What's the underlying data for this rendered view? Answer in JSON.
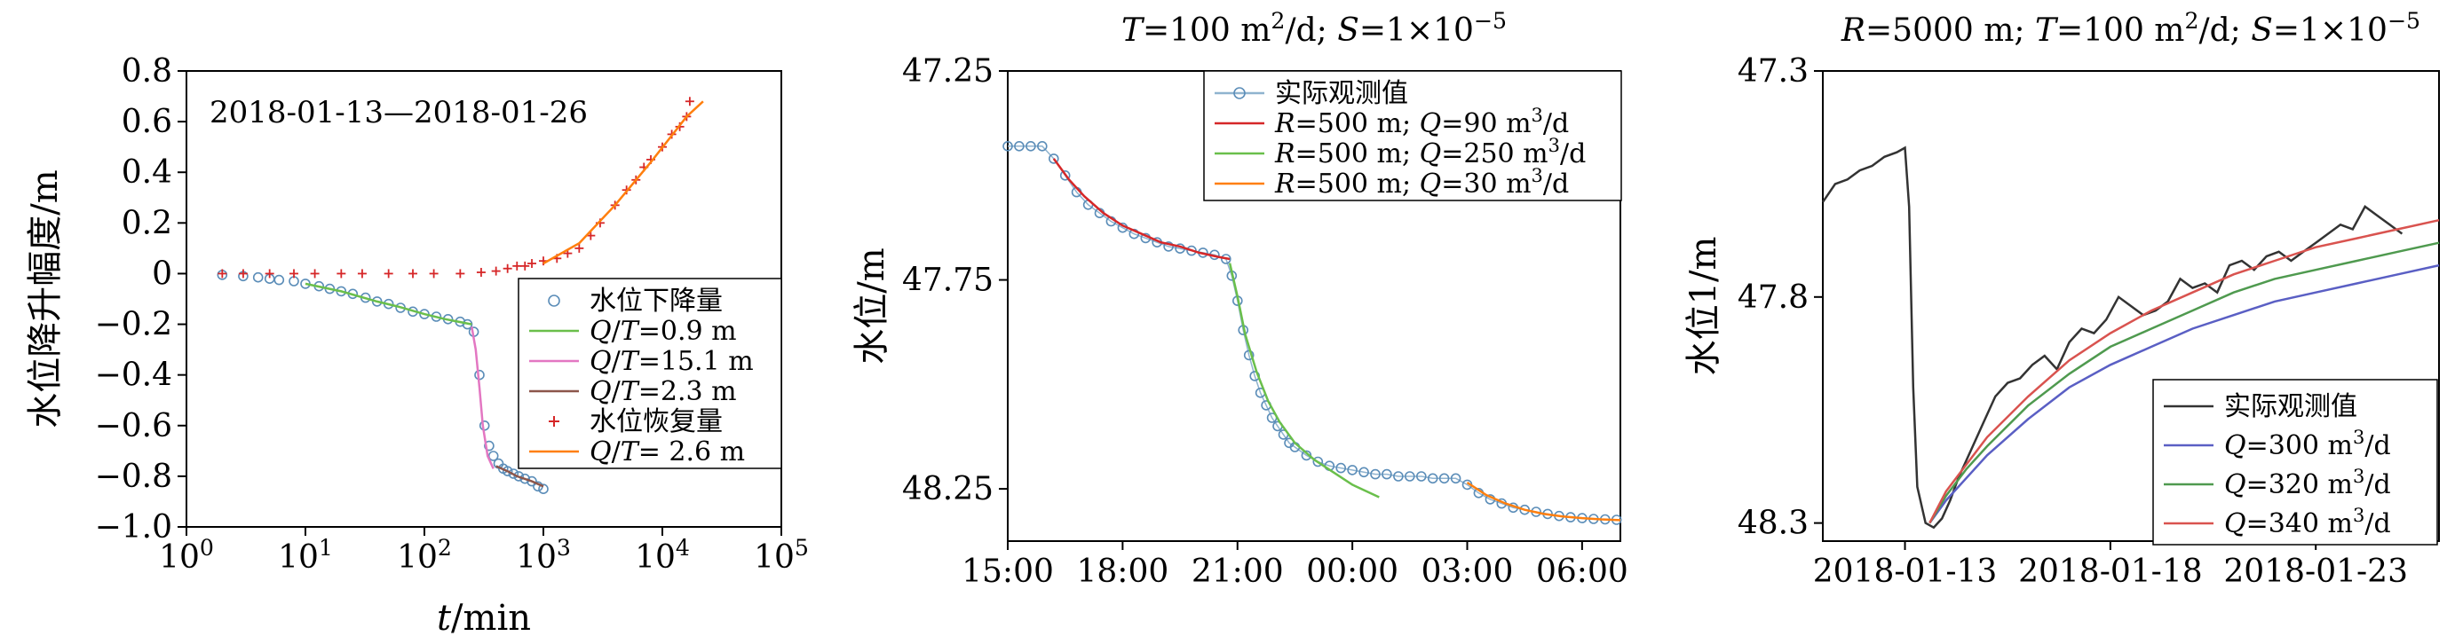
{
  "chart_data": [
    {
      "id": "panel1",
      "type": "scatter",
      "annotation": "2018-01-13—2018-01-26",
      "xlabel": "t/min",
      "ylabel": "水位降升幅度/m",
      "x_scale": "log",
      "xlim": [
        1,
        100000
      ],
      "ylim": [
        -1.0,
        0.8
      ],
      "x_ticks": [
        {
          "v": 1,
          "base": "10",
          "exp": "0"
        },
        {
          "v": 10,
          "base": "10",
          "exp": "1"
        },
        {
          "v": 100,
          "base": "10",
          "exp": "2"
        },
        {
          "v": 1000,
          "base": "10",
          "exp": "3"
        },
        {
          "v": 10000,
          "base": "10",
          "exp": "4"
        },
        {
          "v": 100000,
          "base": "10",
          "exp": "5"
        }
      ],
      "y_ticks": [
        {
          "v": 0.8,
          "label": "0.8"
        },
        {
          "v": 0.6,
          "label": "0.6"
        },
        {
          "v": 0.4,
          "label": "0.4"
        },
        {
          "v": 0.2,
          "label": "0.2"
        },
        {
          "v": 0,
          "label": "0"
        },
        {
          "v": -0.2,
          "label": "−0.2"
        },
        {
          "v": -0.4,
          "label": "−0.4"
        },
        {
          "v": -0.6,
          "label": "−0.6"
        },
        {
          "v": -0.8,
          "label": "−0.8"
        },
        {
          "v": -1.0,
          "label": "−1.0"
        }
      ],
      "legend_position": "right",
      "legend": [
        {
          "label": "水位下降量",
          "marker": "circle",
          "color": "#5b8db8"
        },
        {
          "label": "Q/T=0.9 m",
          "marker": "line",
          "color": "#6abf4b"
        },
        {
          "label": "Q/T=15.1 m",
          "marker": "line",
          "color": "#e377c2"
        },
        {
          "label": "Q/T=2.3 m",
          "marker": "line",
          "color": "#8c564b"
        },
        {
          "label": "水位恢复量",
          "marker": "plus",
          "color": "#d62728"
        },
        {
          "label": "Q/T= 2.6 m",
          "marker": "line",
          "color": "#ff7f0e"
        }
      ],
      "series": [
        {
          "name": "水位下降量",
          "kind": "circle",
          "color": "#5b8db8",
          "x": [
            2,
            3,
            4,
            5,
            6,
            8,
            10,
            13,
            16,
            20,
            25,
            32,
            40,
            50,
            63,
            80,
            100,
            126,
            158,
            200,
            230,
            260,
            290,
            320,
            350,
            380,
            420,
            460,
            500,
            560,
            620,
            700,
            800,
            900,
            1000
          ],
          "y": [
            -0.005,
            -0.01,
            -0.015,
            -0.02,
            -0.025,
            -0.03,
            -0.04,
            -0.05,
            -0.06,
            -0.07,
            -0.08,
            -0.095,
            -0.11,
            -0.12,
            -0.135,
            -0.15,
            -0.16,
            -0.17,
            -0.18,
            -0.19,
            -0.2,
            -0.23,
            -0.4,
            -0.6,
            -0.68,
            -0.72,
            -0.75,
            -0.77,
            -0.78,
            -0.79,
            -0.8,
            -0.81,
            -0.82,
            -0.84,
            -0.85
          ]
        },
        {
          "name": "Q/T=0.9 m",
          "kind": "line",
          "color": "#6abf4b",
          "x": [
            10,
            20,
            40,
            60,
            100,
            150,
            250
          ],
          "y": [
            -0.04,
            -0.07,
            -0.11,
            -0.13,
            -0.16,
            -0.18,
            -0.2
          ]
        },
        {
          "name": "Q/T=15.1 m",
          "kind": "line",
          "color": "#e377c2",
          "x": [
            250,
            270,
            290,
            310,
            340,
            380
          ],
          "y": [
            -0.21,
            -0.3,
            -0.45,
            -0.6,
            -0.72,
            -0.77
          ]
        },
        {
          "name": "Q/T=2.3 m",
          "kind": "line",
          "color": "#8c564b",
          "x": [
            400,
            500,
            600,
            800,
            1000
          ],
          "y": [
            -0.76,
            -0.78,
            -0.8,
            -0.82,
            -0.84
          ]
        },
        {
          "name": "水位恢复量",
          "kind": "plus",
          "color": "#d62728",
          "x": [
            2,
            3,
            5,
            8,
            12,
            20,
            30,
            50,
            80,
            120,
            200,
            300,
            400,
            500,
            600,
            700,
            800,
            1000,
            1300,
            1600,
            2000,
            2500,
            3000,
            4000,
            5000,
            6000,
            7000,
            8000,
            10000,
            12000,
            14000,
            16000,
            17000
          ],
          "y": [
            0,
            0,
            0,
            0,
            0,
            0,
            0,
            0,
            0,
            0,
            0,
            0.005,
            0.01,
            0.02,
            0.03,
            0.03,
            0.04,
            0.05,
            0.06,
            0.08,
            0.1,
            0.15,
            0.2,
            0.27,
            0.33,
            0.37,
            0.42,
            0.45,
            0.5,
            0.55,
            0.58,
            0.62,
            0.68
          ]
        },
        {
          "name": "Q/T= 2.6 m",
          "kind": "line",
          "color": "#ff7f0e",
          "x": [
            1000,
            2000,
            4000,
            8000,
            16000,
            22000
          ],
          "y": [
            0.04,
            0.12,
            0.27,
            0.44,
            0.62,
            0.68
          ]
        }
      ]
    },
    {
      "id": "panel2",
      "type": "line",
      "title": "T=100 m²/d; S=1×10⁻⁵",
      "ylabel": "水位/m",
      "xlim": [
        0,
        16
      ],
      "ylim": [
        47.25,
        48.375
      ],
      "y_inverted": true,
      "x_ticks": [
        {
          "v": 0,
          "label": "15:00"
        },
        {
          "v": 3,
          "label": "18:00"
        },
        {
          "v": 6,
          "label": "21:00"
        },
        {
          "v": 9,
          "label": "00:00"
        },
        {
          "v": 12,
          "label": "03:00"
        },
        {
          "v": 15,
          "label": "06:00"
        }
      ],
      "y_ticks": [
        {
          "v": 47.25,
          "label": "47.25"
        },
        {
          "v": 47.75,
          "label": "47.75"
        },
        {
          "v": 48.25,
          "label": "48.25"
        }
      ],
      "legend_position": "top-center",
      "legend": [
        {
          "label": "实际观测值",
          "marker": "circle-line",
          "color": "#8fb3cf"
        },
        {
          "label": "R=500 m; Q=90 m³/d",
          "marker": "line",
          "color": "#d62728"
        },
        {
          "label": "R=500 m; Q=250 m³/d",
          "marker": "line",
          "color": "#6abf4b"
        },
        {
          "label": "R=500 m; Q=30 m³/d",
          "marker": "line",
          "color": "#ff7f0e"
        }
      ],
      "series": [
        {
          "name": "实际观测值",
          "kind": "circle",
          "color": "#5b8db8",
          "x": [
            0,
            0.3,
            0.6,
            0.9,
            1.2,
            1.5,
            1.8,
            2.1,
            2.4,
            2.7,
            3.0,
            3.3,
            3.6,
            3.9,
            4.2,
            4.5,
            4.8,
            5.1,
            5.4,
            5.7,
            5.85,
            6.0,
            6.15,
            6.3,
            6.45,
            6.6,
            6.75,
            6.9,
            7.05,
            7.2,
            7.35,
            7.5,
            7.8,
            8.1,
            8.4,
            8.7,
            9.0,
            9.3,
            9.6,
            9.9,
            10.2,
            10.5,
            10.8,
            11.1,
            11.4,
            11.7,
            12.0,
            12.3,
            12.6,
            12.9,
            13.2,
            13.5,
            13.8,
            14.1,
            14.4,
            14.7,
            15.0,
            15.3,
            15.6,
            15.9
          ],
          "y": [
            47.43,
            47.43,
            47.43,
            47.43,
            47.46,
            47.5,
            47.54,
            47.57,
            47.59,
            47.61,
            47.625,
            47.64,
            47.65,
            47.66,
            47.67,
            47.675,
            47.68,
            47.685,
            47.69,
            47.7,
            47.74,
            47.8,
            47.87,
            47.93,
            47.98,
            48.02,
            48.05,
            48.08,
            48.1,
            48.12,
            48.14,
            48.15,
            48.17,
            48.185,
            48.195,
            48.2,
            48.205,
            48.21,
            48.215,
            48.215,
            48.22,
            48.22,
            48.22,
            48.225,
            48.225,
            48.225,
            48.24,
            48.26,
            48.275,
            48.285,
            48.295,
            48.3,
            48.305,
            48.31,
            48.315,
            48.318,
            48.32,
            48.322,
            48.323,
            48.324
          ]
        },
        {
          "name": "R=500 m; Q=90 m³/d",
          "kind": "line",
          "color": "#d62728",
          "x": [
            1.2,
            1.6,
            2.0,
            2.5,
            3.0,
            3.5,
            4.0,
            4.5,
            5.0,
            5.5,
            5.8
          ],
          "y": [
            47.46,
            47.51,
            47.55,
            47.59,
            47.62,
            47.64,
            47.66,
            47.67,
            47.685,
            47.695,
            47.7
          ]
        },
        {
          "name": "R=500 m; Q=250 m³/d",
          "kind": "line",
          "color": "#6abf4b",
          "x": [
            5.8,
            6.0,
            6.2,
            6.5,
            6.8,
            7.1,
            7.5,
            8.0,
            8.5,
            9.0,
            9.7
          ],
          "y": [
            47.71,
            47.79,
            47.88,
            47.97,
            48.04,
            48.09,
            48.14,
            48.18,
            48.21,
            48.24,
            48.27
          ]
        },
        {
          "name": "R=500 m; Q=30 m³/d",
          "kind": "line",
          "color": "#ff7f0e",
          "x": [
            12.0,
            12.5,
            13.0,
            13.5,
            14.0,
            14.5,
            15.0,
            15.5,
            16.0
          ],
          "y": [
            48.235,
            48.265,
            48.285,
            48.3,
            48.31,
            48.316,
            48.32,
            48.323,
            48.325
          ]
        }
      ]
    },
    {
      "id": "panel3",
      "type": "line",
      "title": "R=5000 m; T=100 m²/d; S=1×10⁻⁵",
      "ylabel": "水位1/m",
      "xlim": [
        0,
        15
      ],
      "ylim": [
        47.3,
        48.34
      ],
      "y_inverted": true,
      "x_ticks": [
        {
          "v": 2,
          "label": "2018-01-13"
        },
        {
          "v": 7,
          "label": "2018-01-18"
        },
        {
          "v": 12,
          "label": "2018-01-23"
        }
      ],
      "y_ticks": [
        {
          "v": 47.3,
          "label": "47.3"
        },
        {
          "v": 47.8,
          "label": "47.8"
        },
        {
          "v": 48.3,
          "label": "48.3"
        }
      ],
      "legend_position": "bottom-right",
      "legend": [
        {
          "label": "实际观测值",
          "marker": "line",
          "color": "#333333"
        },
        {
          "label": "Q=300 m³/d",
          "marker": "line",
          "color": "#5a5fc4"
        },
        {
          "label": "Q=320 m³/d",
          "marker": "line",
          "color": "#4f9a4f"
        },
        {
          "label": "Q=340 m³/d",
          "marker": "line",
          "color": "#d9534f"
        }
      ],
      "series": [
        {
          "name": "实际观测值",
          "kind": "line",
          "color": "#333333",
          "x": [
            0,
            0.3,
            0.6,
            0.9,
            1.2,
            1.5,
            1.8,
            2.0,
            2.1,
            2.2,
            2.3,
            2.5,
            2.7,
            2.9,
            3.1,
            3.3,
            3.6,
            3.9,
            4.2,
            4.5,
            4.8,
            5.1,
            5.4,
            5.7,
            6.0,
            6.3,
            6.6,
            6.9,
            7.2,
            7.5,
            7.8,
            8.1,
            8.4,
            8.7,
            9.0,
            9.3,
            9.6,
            9.9,
            10.2,
            10.5,
            10.8,
            11.1,
            11.4,
            11.7,
            12.0,
            12.3,
            12.6,
            12.9,
            13.2,
            13.5,
            13.8,
            14.1
          ],
          "y": [
            47.59,
            47.55,
            47.54,
            47.52,
            47.51,
            47.49,
            47.48,
            47.47,
            47.6,
            48.0,
            48.22,
            48.3,
            48.31,
            48.29,
            48.25,
            48.2,
            48.14,
            48.08,
            48.02,
            47.99,
            47.98,
            47.95,
            47.93,
            47.96,
            47.9,
            47.87,
            47.88,
            47.85,
            47.8,
            47.82,
            47.84,
            47.83,
            47.81,
            47.76,
            47.78,
            47.77,
            47.79,
            47.73,
            47.72,
            47.74,
            47.71,
            47.7,
            47.72,
            47.7,
            47.68,
            47.66,
            47.64,
            47.65,
            47.6,
            47.62,
            47.64,
            47.66
          ]
        },
        {
          "name": "Q=300 m³/d",
          "kind": "line",
          "color": "#5a5fc4",
          "x": [
            2.6,
            3.0,
            3.5,
            4.0,
            5.0,
            6.0,
            7.0,
            8.0,
            9.0,
            10.0,
            11.0,
            12.0,
            13.0,
            14.0,
            15.0
          ],
          "y": [
            48.3,
            48.25,
            48.2,
            48.15,
            48.07,
            48.0,
            47.95,
            47.91,
            47.87,
            47.84,
            47.81,
            47.79,
            47.77,
            47.75,
            47.73
          ]
        },
        {
          "name": "Q=320 m³/d",
          "kind": "line",
          "color": "#4f9a4f",
          "x": [
            2.6,
            3.0,
            3.5,
            4.0,
            5.0,
            6.0,
            7.0,
            8.0,
            9.0,
            10.0,
            11.0,
            12.0,
            13.0,
            14.0,
            15.0
          ],
          "y": [
            48.3,
            48.24,
            48.18,
            48.13,
            48.04,
            47.97,
            47.91,
            47.87,
            47.83,
            47.79,
            47.76,
            47.74,
            47.72,
            47.7,
            47.68
          ]
        },
        {
          "name": "Q=340 m³/d",
          "kind": "line",
          "color": "#d9534f",
          "x": [
            2.6,
            3.0,
            3.5,
            4.0,
            5.0,
            6.0,
            7.0,
            8.0,
            9.0,
            10.0,
            11.0,
            12.0,
            13.0,
            14.0,
            15.0
          ],
          "y": [
            48.3,
            48.23,
            48.17,
            48.11,
            48.02,
            47.94,
            47.88,
            47.83,
            47.79,
            47.75,
            47.72,
            47.69,
            47.67,
            47.65,
            47.63
          ]
        }
      ]
    }
  ]
}
